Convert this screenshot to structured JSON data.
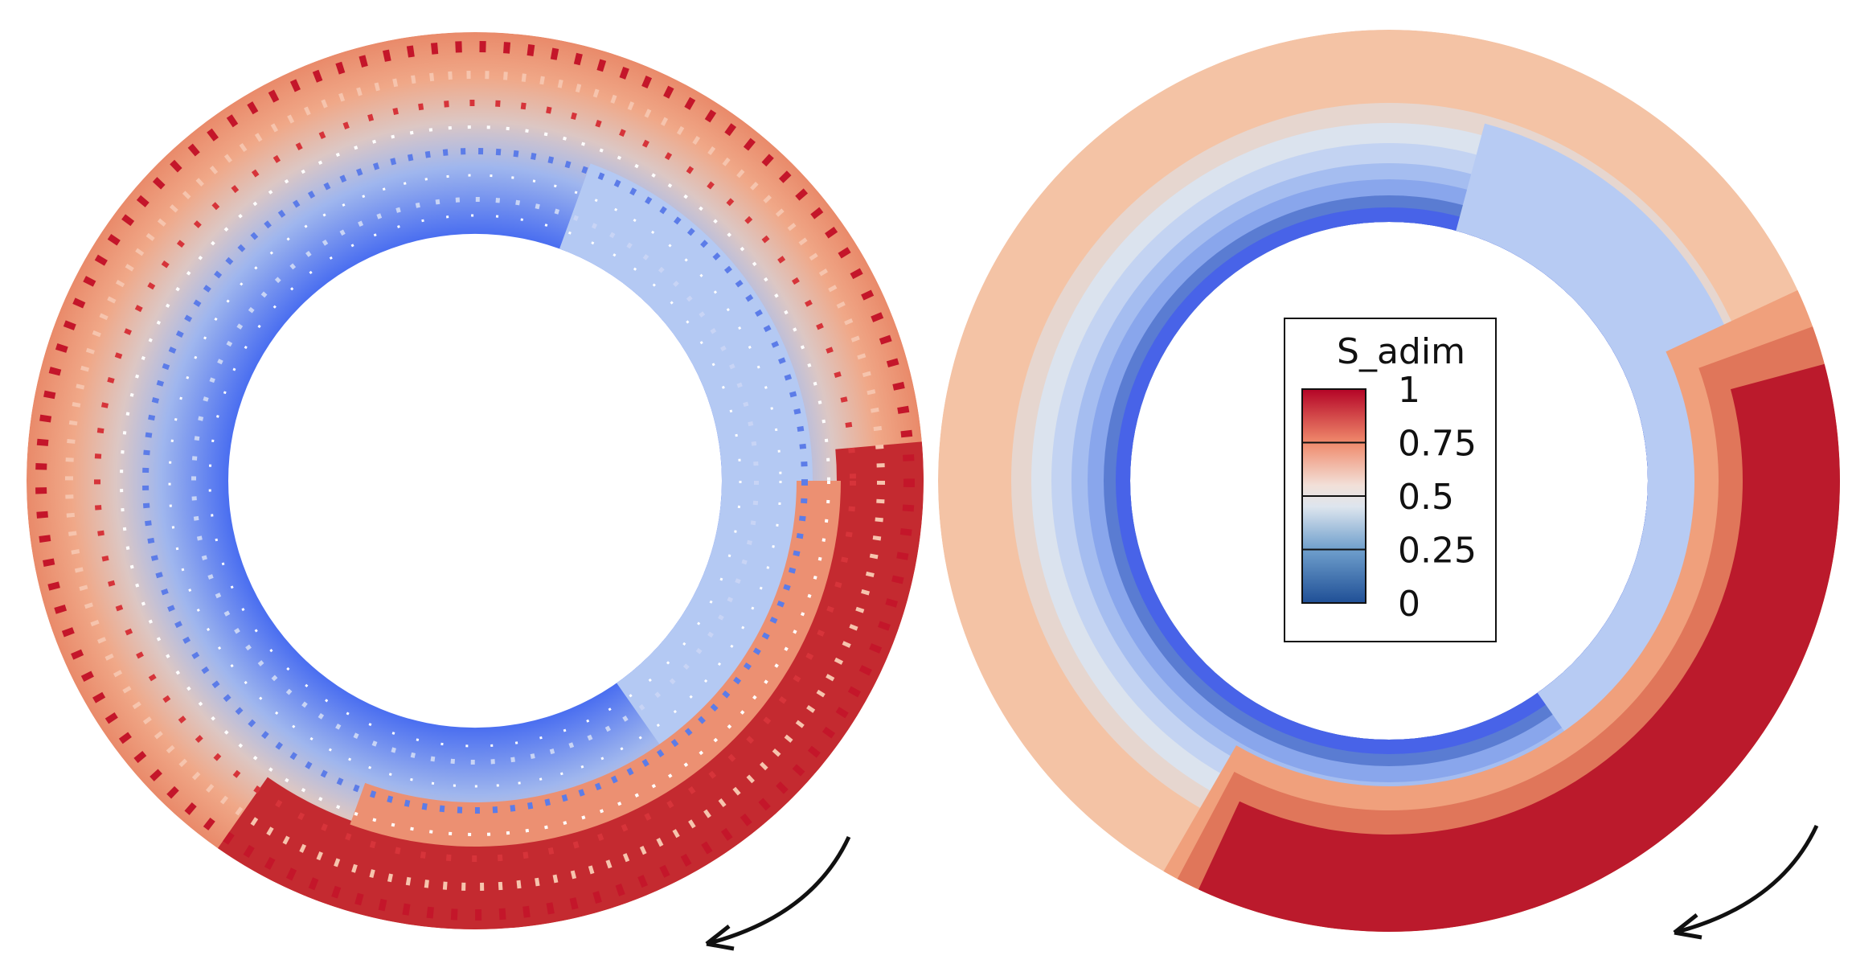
{
  "legend": {
    "title": "S_adim",
    "ticks": [
      0,
      0.25,
      0.5,
      0.75,
      1
    ]
  }
}
